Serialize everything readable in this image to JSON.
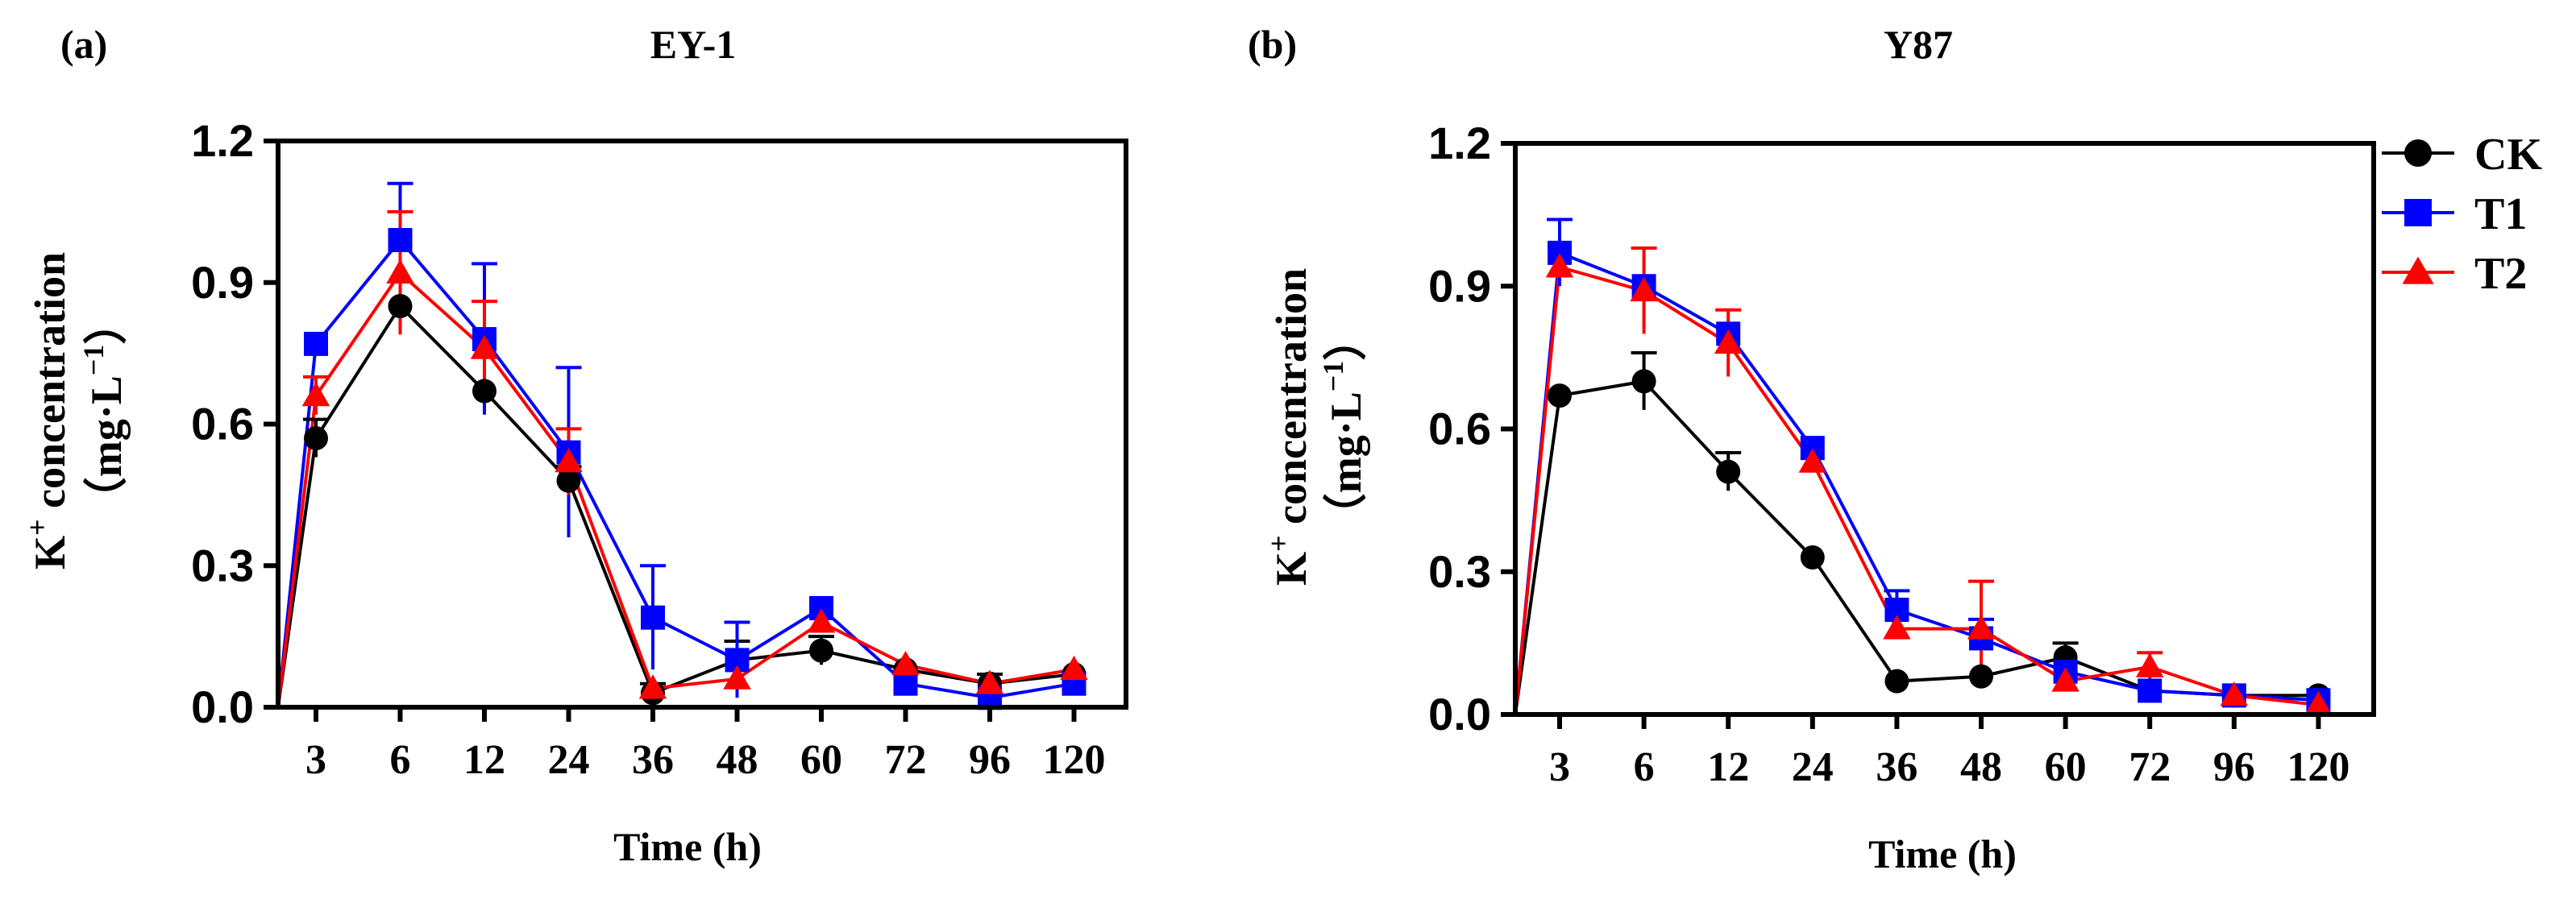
{
  "chart_data": [
    {
      "type": "line",
      "panel_label": "(a)",
      "title": "EY-1",
      "xlabel": "Time (h)",
      "ylabel_line1_main": "K",
      "ylabel_line1_sup": "+",
      "ylabel_line1_rest": " concentration",
      "ylabel_line2_main": "（mg·L",
      "ylabel_line2_sup": "−1",
      "ylabel_line2_rest": "）",
      "categories": [
        "3",
        "6",
        "12",
        "24",
        "36",
        "48",
        "60",
        "72",
        "96",
        "120"
      ],
      "ylim": [
        0,
        1.2
      ],
      "yticks": [
        "0.0",
        "0.3",
        "0.6",
        "0.9",
        "1.2"
      ],
      "series": [
        {
          "name": "CK",
          "color": "#000000",
          "marker": "circle",
          "values": [
            0.57,
            0.85,
            0.67,
            0.48,
            0.03,
            0.1,
            0.12,
            0.08,
            0.05,
            0.07
          ],
          "errors": [
            0.04,
            0.0,
            0.0,
            0.03,
            0.02,
            0.04,
            0.03,
            0.0,
            0.02,
            0.0
          ]
        },
        {
          "name": "T1",
          "color": "#0000ff",
          "marker": "square",
          "values": [
            0.77,
            0.99,
            0.78,
            0.54,
            0.19,
            0.1,
            0.21,
            0.05,
            0.02,
            0.05
          ],
          "errors": [
            0.0,
            0.12,
            0.16,
            0.18,
            0.11,
            0.08,
            0.0,
            0.0,
            0.0,
            0.0
          ]
        },
        {
          "name": "T2",
          "color": "#ff0000",
          "marker": "triangle",
          "values": [
            0.66,
            0.92,
            0.76,
            0.52,
            0.04,
            0.06,
            0.18,
            0.09,
            0.05,
            0.08
          ],
          "errors": [
            0.04,
            0.13,
            0.1,
            0.07,
            0.0,
            0.0,
            0.0,
            0.0,
            0.0,
            0.0
          ]
        }
      ],
      "start_point": {
        "x_label": "0",
        "value": 0
      }
    },
    {
      "type": "line",
      "panel_label": "(b)",
      "title": "Y87",
      "xlabel": "Time (h)",
      "ylabel_line1_main": "K",
      "ylabel_line1_sup": "+",
      "ylabel_line1_rest": " concentration",
      "ylabel_line2_main": "（mg·L",
      "ylabel_line2_sup": "−1",
      "ylabel_line2_rest": "）",
      "categories": [
        "3",
        "6",
        "12",
        "24",
        "36",
        "48",
        "60",
        "72",
        "96",
        "120"
      ],
      "ylim": [
        0,
        1.2
      ],
      "yticks": [
        "0.0",
        "0.3",
        "0.6",
        "0.9",
        "1.2"
      ],
      "legend_position": "right",
      "series": [
        {
          "name": "CK",
          "color": "#000000",
          "marker": "circle",
          "values": [
            0.67,
            0.7,
            0.51,
            0.33,
            0.07,
            0.08,
            0.12,
            0.05,
            0.04,
            0.04
          ],
          "errors": [
            0.0,
            0.06,
            0.04,
            0.0,
            0.0,
            0.0,
            0.03,
            0.0,
            0.0,
            0.0
          ]
        },
        {
          "name": "T1",
          "color": "#0000ff",
          "marker": "square",
          "values": [
            0.97,
            0.9,
            0.8,
            0.56,
            0.22,
            0.16,
            0.09,
            0.05,
            0.04,
            0.03
          ],
          "errors": [
            0.07,
            0.0,
            0.0,
            0.0,
            0.04,
            0.04,
            0.0,
            0.0,
            0.0,
            0.0
          ]
        },
        {
          "name": "T2",
          "color": "#ff0000",
          "marker": "triangle",
          "values": [
            0.94,
            0.89,
            0.78,
            0.53,
            0.18,
            0.18,
            0.07,
            0.1,
            0.04,
            0.02
          ],
          "errors": [
            0.0,
            0.09,
            0.07,
            0.0,
            0.0,
            0.1,
            0.0,
            0.03,
            0.0,
            0.0
          ]
        }
      ],
      "start_point": {
        "x_label": "0",
        "value": 0
      }
    }
  ]
}
